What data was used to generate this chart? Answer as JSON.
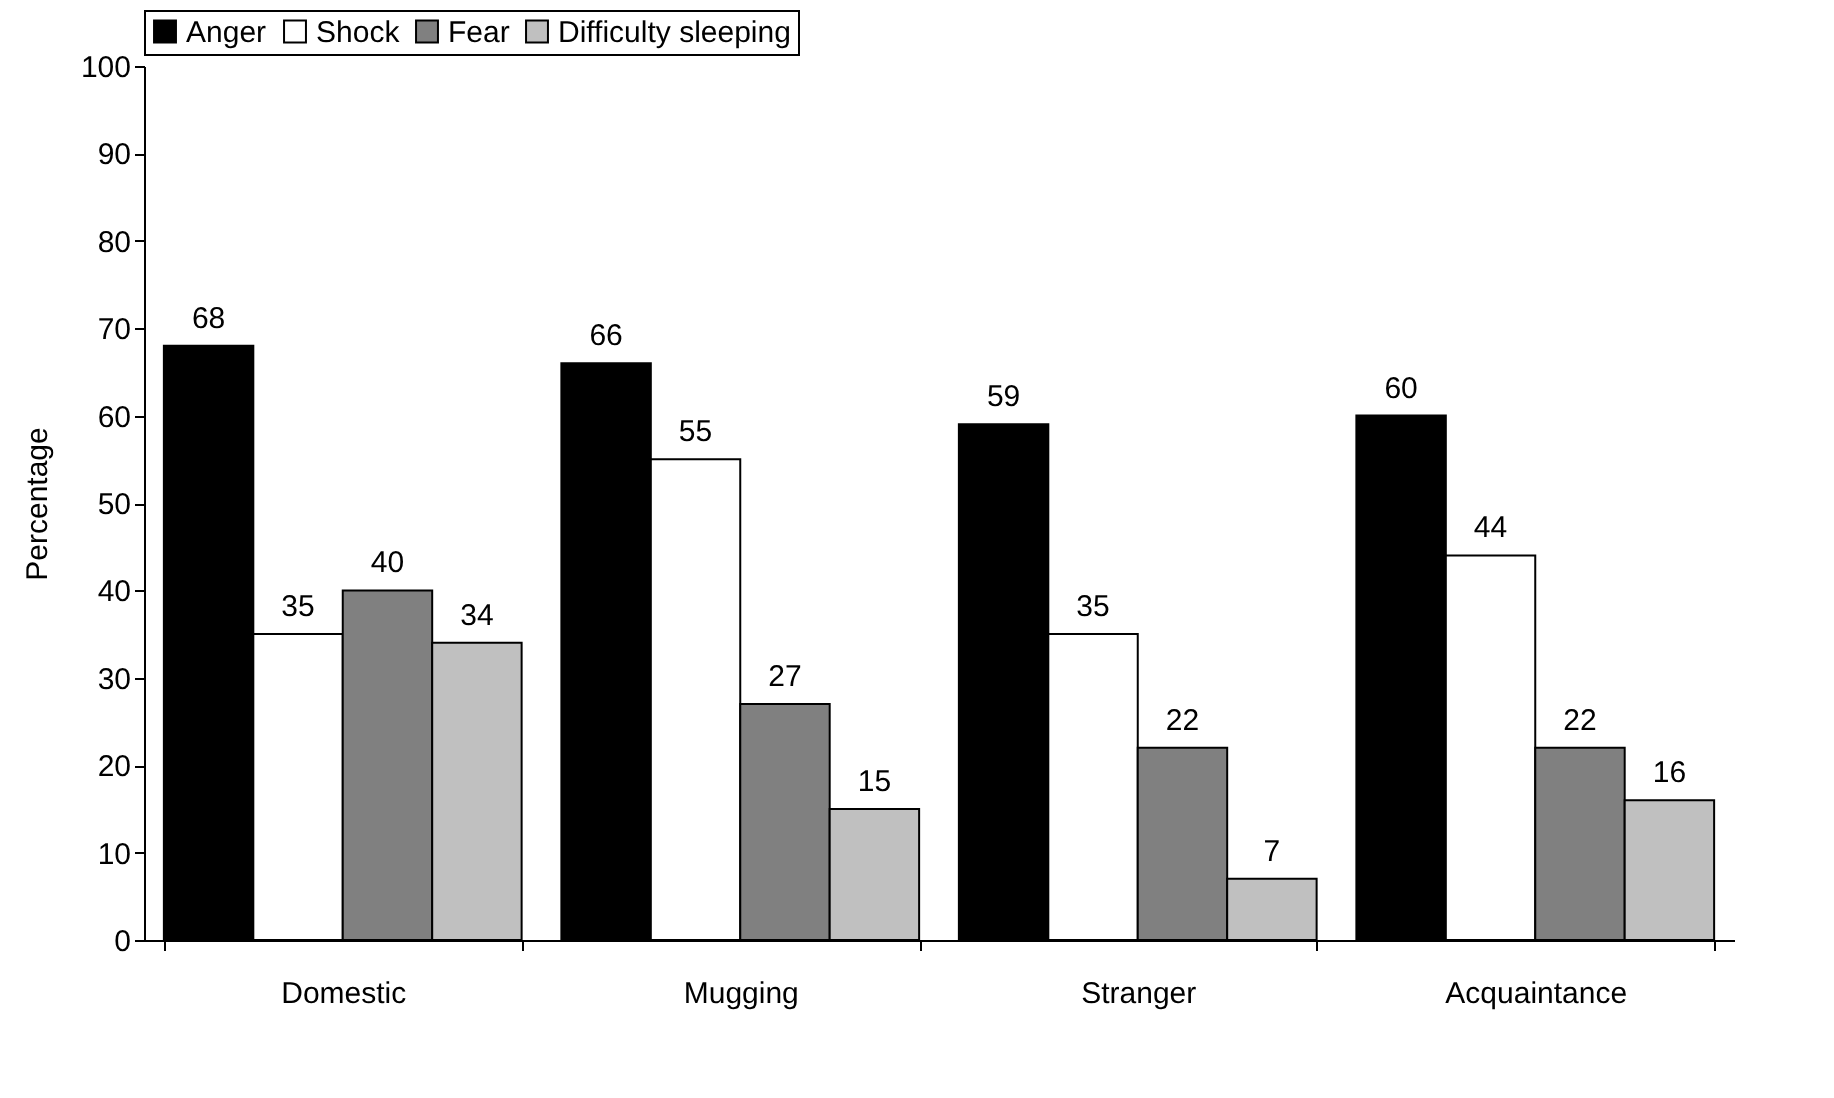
{
  "chart_data": {
    "type": "bar",
    "ylabel": "Percentage",
    "categories": [
      "Domestic",
      "Mugging",
      "Stranger",
      "Acquaintance"
    ],
    "series": [
      {
        "name": "Anger",
        "color": "#000000",
        "values": [
          68,
          66,
          59,
          60
        ]
      },
      {
        "name": "Shock",
        "color": "#ffffff",
        "values": [
          35,
          55,
          35,
          44
        ]
      },
      {
        "name": "Fear",
        "color": "#808080",
        "values": [
          40,
          27,
          22,
          22
        ]
      },
      {
        "name": "Difficulty sleeping",
        "color": "#c0c0c0",
        "values": [
          34,
          15,
          7,
          16
        ]
      }
    ],
    "ylim": [
      0,
      100
    ],
    "yticks": [
      0,
      10,
      20,
      30,
      40,
      50,
      60,
      70,
      80,
      90,
      100
    ],
    "data_labels": true,
    "legend": "top",
    "grid": false
  }
}
